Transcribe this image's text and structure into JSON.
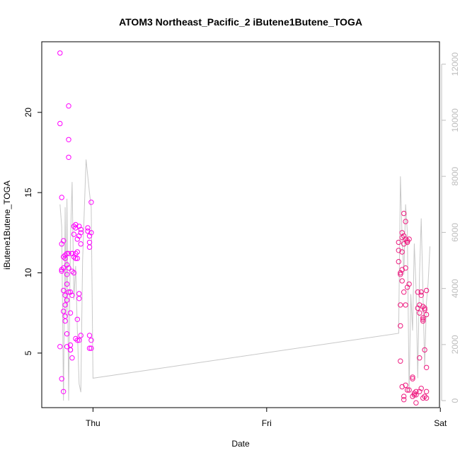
{
  "chart_data": {
    "type": "scatter",
    "title": "ATOM3 Northeast_Pacific_2 iButene1Butene_TOGA",
    "xlabel": "Date",
    "ylabel": "iButene1Butene_TOGA",
    "x_ticks": [
      "Thu",
      "Fri",
      "Sat"
    ],
    "x_range_days": [
      -0.295,
      1.995
    ],
    "ylim": [
      1.6,
      24.4
    ],
    "y_ticks": [
      5,
      10,
      15,
      20
    ],
    "y2lim": [
      -250,
      12800
    ],
    "y2_ticks": [
      0,
      2000,
      4000,
      6000,
      8000,
      10000,
      12000
    ],
    "grid": false,
    "colors": {
      "points": "#ff00ff",
      "points_late": "#ee1c80",
      "line": "#c8c8c8",
      "axis": "#000000",
      "axis_right": "#bdbdbd"
    },
    "series": [
      {
        "name": "",
        "kind": "points",
        "x": [
          -0.19,
          -0.19,
          -0.19,
          -0.18,
          -0.18,
          -0.18,
          -0.18,
          -0.18,
          -0.17,
          -0.17,
          -0.17,
          -0.17,
          -0.17,
          -0.17,
          -0.16,
          -0.16,
          -0.16,
          -0.16,
          -0.16,
          -0.16,
          -0.15,
          -0.15,
          -0.15,
          -0.15,
          -0.15,
          -0.15,
          -0.15,
          -0.14,
          -0.14,
          -0.14,
          -0.14,
          -0.14,
          -0.14,
          -0.13,
          -0.13,
          -0.13,
          -0.13,
          -0.13,
          -0.12,
          -0.12,
          -0.12,
          -0.12,
          -0.12,
          -0.11,
          -0.11,
          -0.11,
          -0.11,
          -0.1,
          -0.1,
          -0.1,
          -0.1,
          -0.1,
          -0.09,
          -0.09,
          -0.09,
          -0.09,
          -0.09,
          -0.08,
          -0.08,
          -0.08,
          -0.08,
          -0.08,
          -0.07,
          -0.07,
          -0.07,
          -0.07,
          -0.03,
          -0.03,
          -0.02,
          -0.02,
          -0.02,
          -0.02,
          -0.02,
          -0.01,
          -0.01,
          -0.01,
          -0.01
        ],
        "y": [
          23.7,
          19.3,
          5.4,
          14.7,
          11.8,
          10.2,
          10.1,
          3.4,
          12.0,
          11.0,
          10.3,
          8.9,
          7.6,
          2.6,
          11.1,
          10.9,
          8.6,
          8.0,
          7.3,
          7.0,
          11.2,
          10.5,
          9.9,
          9.3,
          8.3,
          6.2,
          5.4,
          20.4,
          18.3,
          17.2,
          11.2,
          10.3,
          8.8,
          8.8,
          7.5,
          5.5,
          5.2,
          5.2,
          11.2,
          11.2,
          10.1,
          8.6,
          4.7,
          12.9,
          12.4,
          11.0,
          10.0,
          13.0,
          12.8,
          11.2,
          10.9,
          5.9,
          12.1,
          11.3,
          10.9,
          7.1,
          5.8,
          12.9,
          12.3,
          8.7,
          8.4,
          5.8,
          12.7,
          12.5,
          11.8,
          6.1,
          12.8,
          12.6,
          12.3,
          11.9,
          11.6,
          6.1,
          5.3,
          14.4,
          12.5,
          5.8,
          5.3
        ]
      },
      {
        "name": "",
        "kind": "points",
        "x": [
          1.76,
          1.76,
          1.76,
          1.77,
          1.77,
          1.77,
          1.77,
          1.77,
          1.78,
          1.78,
          1.78,
          1.78,
          1.78,
          1.78,
          1.79,
          1.79,
          1.79,
          1.79,
          1.79,
          1.79,
          1.8,
          1.8,
          1.8,
          1.8,
          1.8,
          1.81,
          1.81,
          1.81,
          1.81,
          1.82,
          1.82,
          1.82,
          1.84,
          1.84,
          1.84,
          1.85,
          1.85,
          1.86,
          1.86,
          1.86,
          1.87,
          1.87,
          1.88,
          1.88,
          1.88,
          1.88,
          1.89,
          1.89,
          1.89,
          1.9,
          1.9,
          1.9,
          1.9,
          1.9,
          1.91,
          1.91,
          1.91,
          1.91,
          1.92,
          1.92,
          1.92,
          1.92,
          1.92
        ],
        "y": [
          11.9,
          11.4,
          10.7,
          10.0,
          9.9,
          8.0,
          6.7,
          4.5,
          12.5,
          12.2,
          11.3,
          10.2,
          9.5,
          2.9,
          13.7,
          12.3,
          11.8,
          8.8,
          2.3,
          2.1,
          13.2,
          12.1,
          10.3,
          8.0,
          3.0,
          12.0,
          11.9,
          9.1,
          2.7,
          12.1,
          9.3,
          2.7,
          3.5,
          3.4,
          2.3,
          2.4,
          2.5,
          2.4,
          1.9,
          2.6,
          8.8,
          7.8,
          8.0,
          7.5,
          4.7,
          2.6,
          8.6,
          8.8,
          2.8,
          7.9,
          7.2,
          7.1,
          7.0,
          2.2,
          7.7,
          7.8,
          5.2,
          2.3,
          8.9,
          7.4,
          4.1,
          2.6,
          2.2
        ]
      },
      {
        "name": "",
        "kind": "line",
        "axis": "right",
        "x": [
          -0.19,
          -0.18,
          -0.17,
          -0.16,
          -0.155,
          -0.15,
          -0.14,
          -0.13,
          -0.12,
          -0.11,
          -0.1,
          -0.09,
          -0.08,
          -0.07,
          -0.06,
          -0.04,
          -0.02,
          -0.01,
          0.0,
          1.76,
          1.77,
          1.78,
          1.79,
          1.8,
          1.81,
          1.82,
          1.83,
          1.84,
          1.85,
          1.86,
          1.87,
          1.88,
          1.89,
          1.9,
          1.91,
          1.92,
          1.93,
          1.94
        ],
        "y": [
          7000,
          6200,
          0,
          6900,
          3000,
          7200,
          0,
          5700,
          7800,
          3600,
          4800,
          2500,
          600,
          300,
          5000,
          8600,
          7400,
          6900,
          800,
          2400,
          8000,
          5800,
          4500,
          7000,
          6000,
          300,
          3800,
          2500,
          5600,
          4000,
          800,
          4500,
          6500,
          3800,
          1200,
          3500,
          4200,
          5500
        ]
      }
    ]
  }
}
